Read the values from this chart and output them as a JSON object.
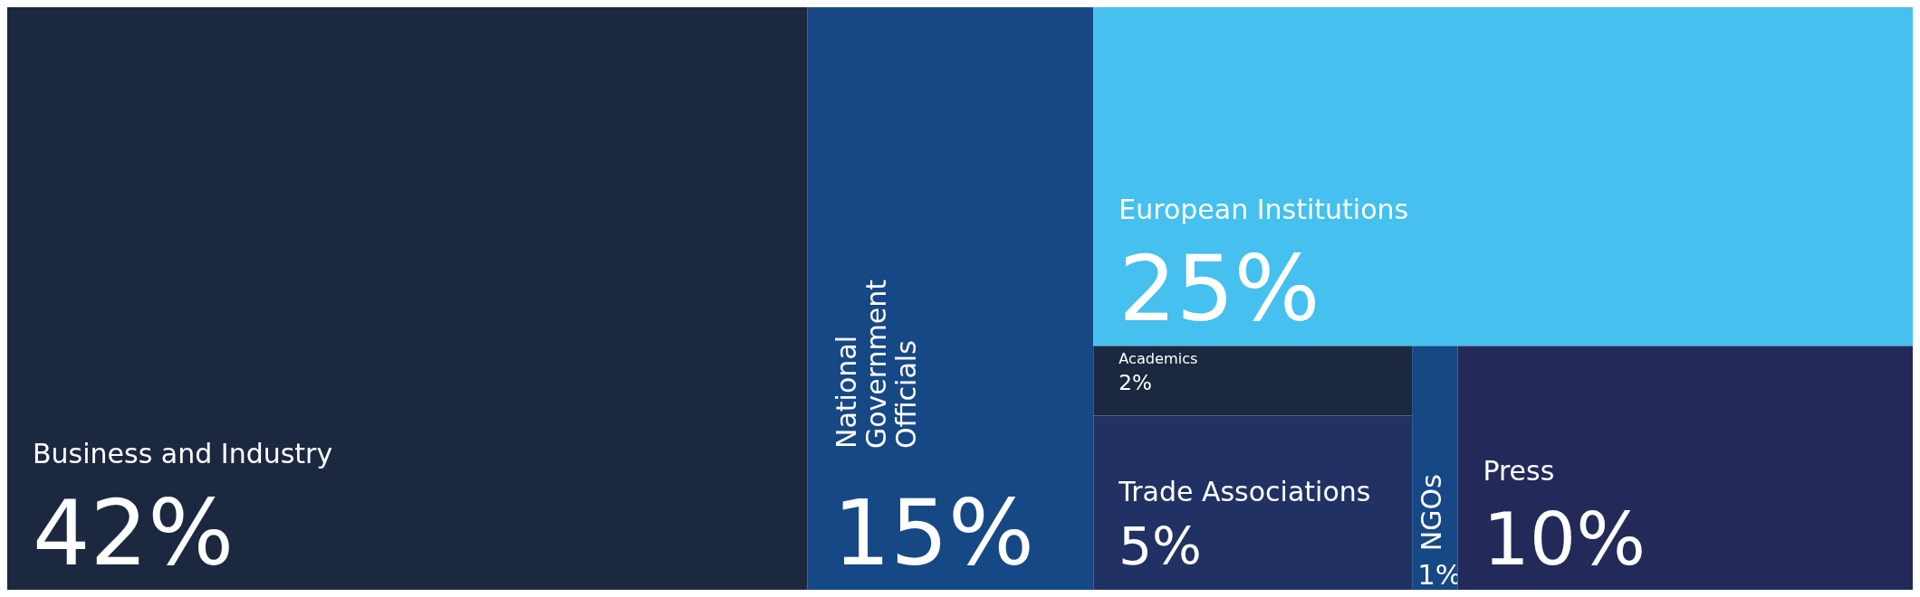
{
  "chart_data": {
    "type": "other",
    "categories": [
      "Business and Industry",
      "National Government Officials",
      "European Institutions",
      "Academics",
      "Trade Associations",
      "NGOs",
      "Press"
    ],
    "values": [
      42,
      15,
      25,
      2,
      5,
      1,
      10
    ],
    "value_labels": [
      "42%",
      "15%",
      "25%",
      "2%",
      "5%",
      "1%",
      "10%"
    ],
    "colors": [
      "#1c2840",
      "#174886",
      "#45c0ef",
      "#1c2840",
      "#223163",
      "#174886",
      "#232a5a"
    ]
  }
}
